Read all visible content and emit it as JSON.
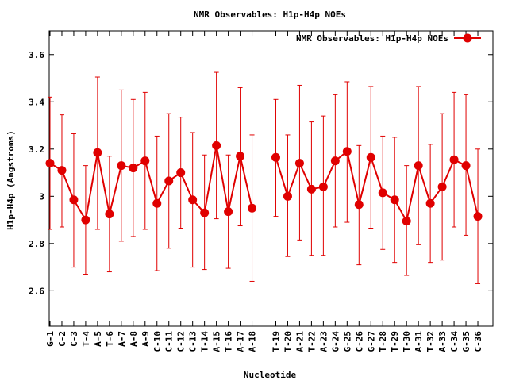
{
  "chart_data": {
    "type": "line",
    "title": "NMR Observables: H1p-H4p NOEs",
    "xlabel": "Nucleotide",
    "ylabel": "H1p-H4p (Angstroms)",
    "ylim": [
      2.45,
      3.7
    ],
    "yticks": [
      "2.6",
      "2.8",
      "3",
      "3.2",
      "3.4",
      "3.6"
    ],
    "ytick_values": [
      2.6,
      2.8,
      3.0,
      3.2,
      3.4,
      3.6
    ],
    "legend_position": "top-right",
    "series": [
      {
        "name": "NMR Observables: H1p-H4p NOEs",
        "color": "#e00000",
        "segments": [
          {
            "labels": [
              "G-1",
              "C-2",
              "C-3",
              "T-4",
              "A-5",
              "T-6",
              "A-7",
              "A-8",
              "A-9",
              "C-10",
              "C-11",
              "C-12",
              "C-13",
              "T-14",
              "A-15",
              "T-16",
              "A-17",
              "A-18"
            ],
            "values": [
              3.14,
              3.11,
              2.985,
              2.9,
              3.185,
              2.925,
              3.13,
              3.12,
              3.15,
              2.97,
              3.065,
              3.1,
              2.985,
              2.93,
              3.215,
              2.935,
              3.17,
              2.95
            ],
            "err_low": [
              2.86,
              2.87,
              2.7,
              2.67,
              2.86,
              2.68,
              2.81,
              2.83,
              2.86,
              2.685,
              2.78,
              2.865,
              2.7,
              2.69,
              2.905,
              2.695,
              2.875,
              2.64
            ],
            "err_high": [
              3.42,
              3.345,
              3.265,
              3.13,
              3.505,
              3.17,
              3.45,
              3.41,
              3.44,
              3.255,
              3.35,
              3.335,
              3.27,
              3.175,
              3.525,
              3.175,
              3.46,
              3.26
            ]
          },
          {
            "labels": [
              "T-19",
              "T-20",
              "A-21",
              "T-22",
              "A-23",
              "G-24",
              "G-25",
              "C-26",
              "G-27",
              "T-28",
              "T-29",
              "T-30",
              "A-31",
              "T-32",
              "A-33",
              "C-34",
              "G-35",
              "C-36"
            ],
            "values": [
              3.165,
              3.0,
              3.14,
              3.03,
              3.04,
              3.15,
              3.19,
              2.965,
              3.165,
              3.015,
              2.985,
              2.895,
              3.13,
              2.97,
              3.04,
              3.155,
              3.13,
              2.915
            ],
            "err_low": [
              2.915,
              2.745,
              2.815,
              2.75,
              2.75,
              2.87,
              2.89,
              2.71,
              2.865,
              2.775,
              2.72,
              2.665,
              2.795,
              2.72,
              2.73,
              2.87,
              2.835,
              2.63
            ],
            "err_high": [
              3.41,
              3.26,
              3.47,
              3.315,
              3.34,
              3.43,
              3.485,
              3.215,
              3.465,
              3.255,
              3.25,
              3.13,
              3.465,
              3.22,
              3.35,
              3.44,
              3.43,
              3.2
            ]
          }
        ]
      }
    ]
  }
}
